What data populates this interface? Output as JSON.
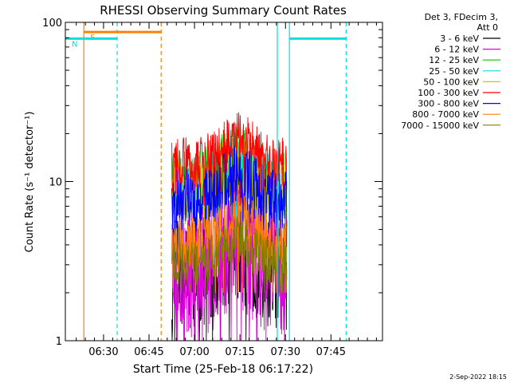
{
  "chart_data": {
    "type": "line",
    "title": "RHESSI Observing Summary Count Rates",
    "xlabel": "Start Time (25-Feb-18 06:17:22)",
    "ylabel": "Count Rate (s⁻¹ detector⁻¹)",
    "x_unit": "minutes",
    "xlim": [
      377.4,
      482
    ],
    "ylim": [
      1,
      100
    ],
    "yscale": "log",
    "x_ticks": [
      {
        "value": 390,
        "label": "06:30"
      },
      {
        "value": 405,
        "label": "06:45"
      },
      {
        "value": 420,
        "label": "07:00"
      },
      {
        "value": 435,
        "label": "07:15"
      },
      {
        "value": 450,
        "label": "07:30"
      },
      {
        "value": 465,
        "label": "07:45"
      }
    ],
    "y_ticks": [
      {
        "value": 1,
        "label": "1"
      },
      {
        "value": 10,
        "label": "10"
      },
      {
        "value": 100,
        "label": "100"
      }
    ],
    "legend_header": [
      "Det 3, FDecim 3,",
      "Att 0"
    ],
    "legend_position": "outside-right",
    "series": [
      {
        "name": "3 - 6 keV",
        "color": "#000000",
        "base": 2.6,
        "amp": 0.35,
        "floor": 1.0
      },
      {
        "name": "6 - 12 keV",
        "color": "#e000e0",
        "base": 2.9,
        "amp": 0.45,
        "floor": 1.0
      },
      {
        "name": "12 - 25 keV",
        "color": "#00c800",
        "base": 10.0,
        "amp": 0.2,
        "floor": 6.0
      },
      {
        "name": "25 - 50 keV",
        "color": "#00e0e0",
        "base": 9.0,
        "amp": 0.2,
        "floor": 6.0
      },
      {
        "name": "50 - 100 keV",
        "color": "#c8c800",
        "base": 8.5,
        "amp": 0.22,
        "floor": 5.0
      },
      {
        "name": "100 - 300 keV",
        "color": "#ff0000",
        "base": 12.5,
        "amp": 0.18,
        "floor": 7.0
      },
      {
        "name": "300 - 800 keV",
        "color": "#0000ff",
        "base": 7.5,
        "amp": 0.2,
        "floor": 5.0
      },
      {
        "name": "800 - 7000 keV",
        "color": "#ff8000",
        "base": 4.0,
        "amp": 0.18,
        "floor": 2.0
      },
      {
        "name": "7000 - 15000 keV",
        "color": "#808000",
        "base": 3.0,
        "amp": 0.15,
        "floor": 2.0
      }
    ],
    "data_start": 412.5,
    "data_end": 450.5,
    "vertical_lines": [
      {
        "x": 383.5,
        "color": "#ff8000",
        "style": "solid"
      },
      {
        "x": 394.5,
        "color": "#00e0e0",
        "style": "dashed"
      },
      {
        "x": 409.0,
        "color": "#ff8000",
        "style": "dashed"
      },
      {
        "x": 447.3,
        "color": "#00e0e0",
        "style": "solid"
      },
      {
        "x": 451.3,
        "color": "#00e0e0",
        "style": "solid"
      },
      {
        "x": 470.0,
        "color": "#00e0e0",
        "style": "dashed"
      }
    ],
    "flag_bars": [
      {
        "label": "S",
        "color": "#ff8000",
        "x_start": 383.5,
        "x_end": 409.0,
        "y": 87
      },
      {
        "label": "N",
        "color": "#00e0e0",
        "x_start": 377.4,
        "x_end": 394.5,
        "y": 79
      },
      {
        "label": "",
        "color": "#00e0e0",
        "x_start": 451.3,
        "x_end": 470.0,
        "y": 79
      }
    ]
  },
  "timestamp": "2-Sep-2022 18:15"
}
